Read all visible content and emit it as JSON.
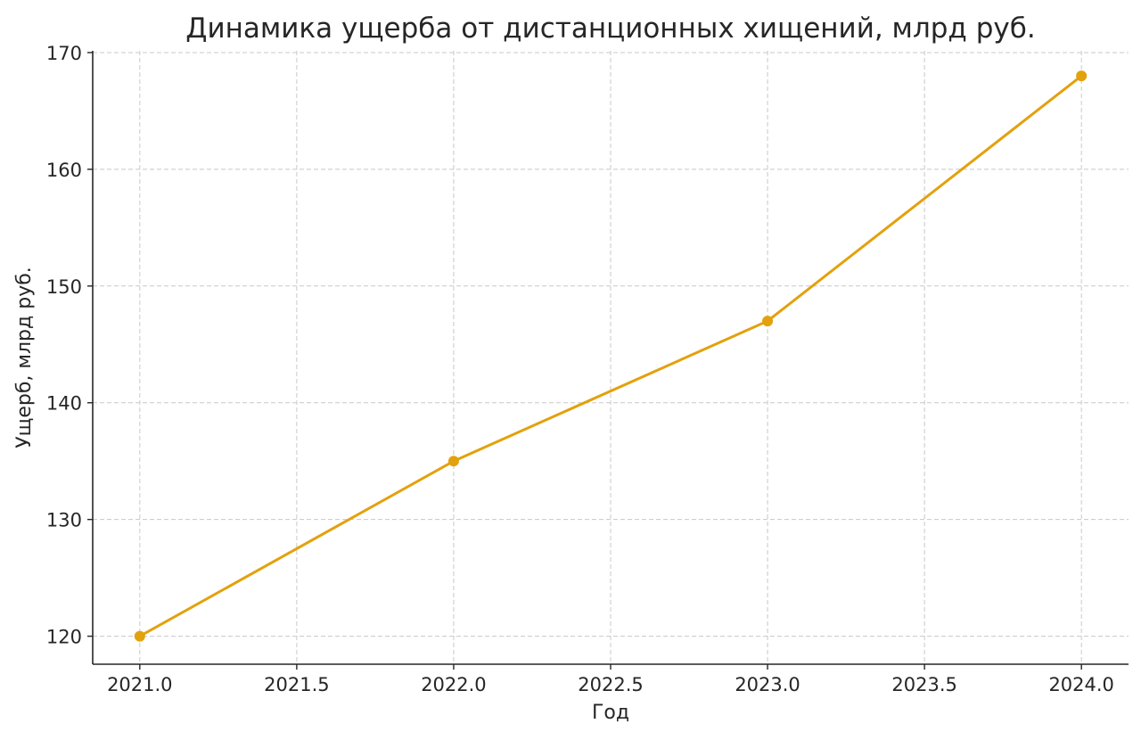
{
  "chart_data": {
    "type": "line",
    "title": "Динамика ущерба от дистанционных хищений, млрд руб.",
    "xlabel": "Год",
    "ylabel": "Ущерб, млрд руб.",
    "x": [
      2021,
      2022,
      2023,
      2024
    ],
    "values": [
      120,
      135,
      147,
      168
    ],
    "xlim": [
      2020.85,
      2024.15
    ],
    "ylim": [
      117.6,
      170.15
    ],
    "xticks": [
      "2021.0",
      "2021.5",
      "2022.0",
      "2022.5",
      "2023.0",
      "2023.5",
      "2024.0"
    ],
    "xtick_values": [
      2021,
      2021.5,
      2022,
      2022.5,
      2023,
      2023.5,
      2024
    ],
    "yticks": [
      "120",
      "130",
      "140",
      "150",
      "160",
      "170"
    ],
    "ytick_values": [
      120,
      130,
      140,
      150,
      160,
      170
    ],
    "grid": true,
    "marker": "circle",
    "color": "#E3A10C"
  }
}
